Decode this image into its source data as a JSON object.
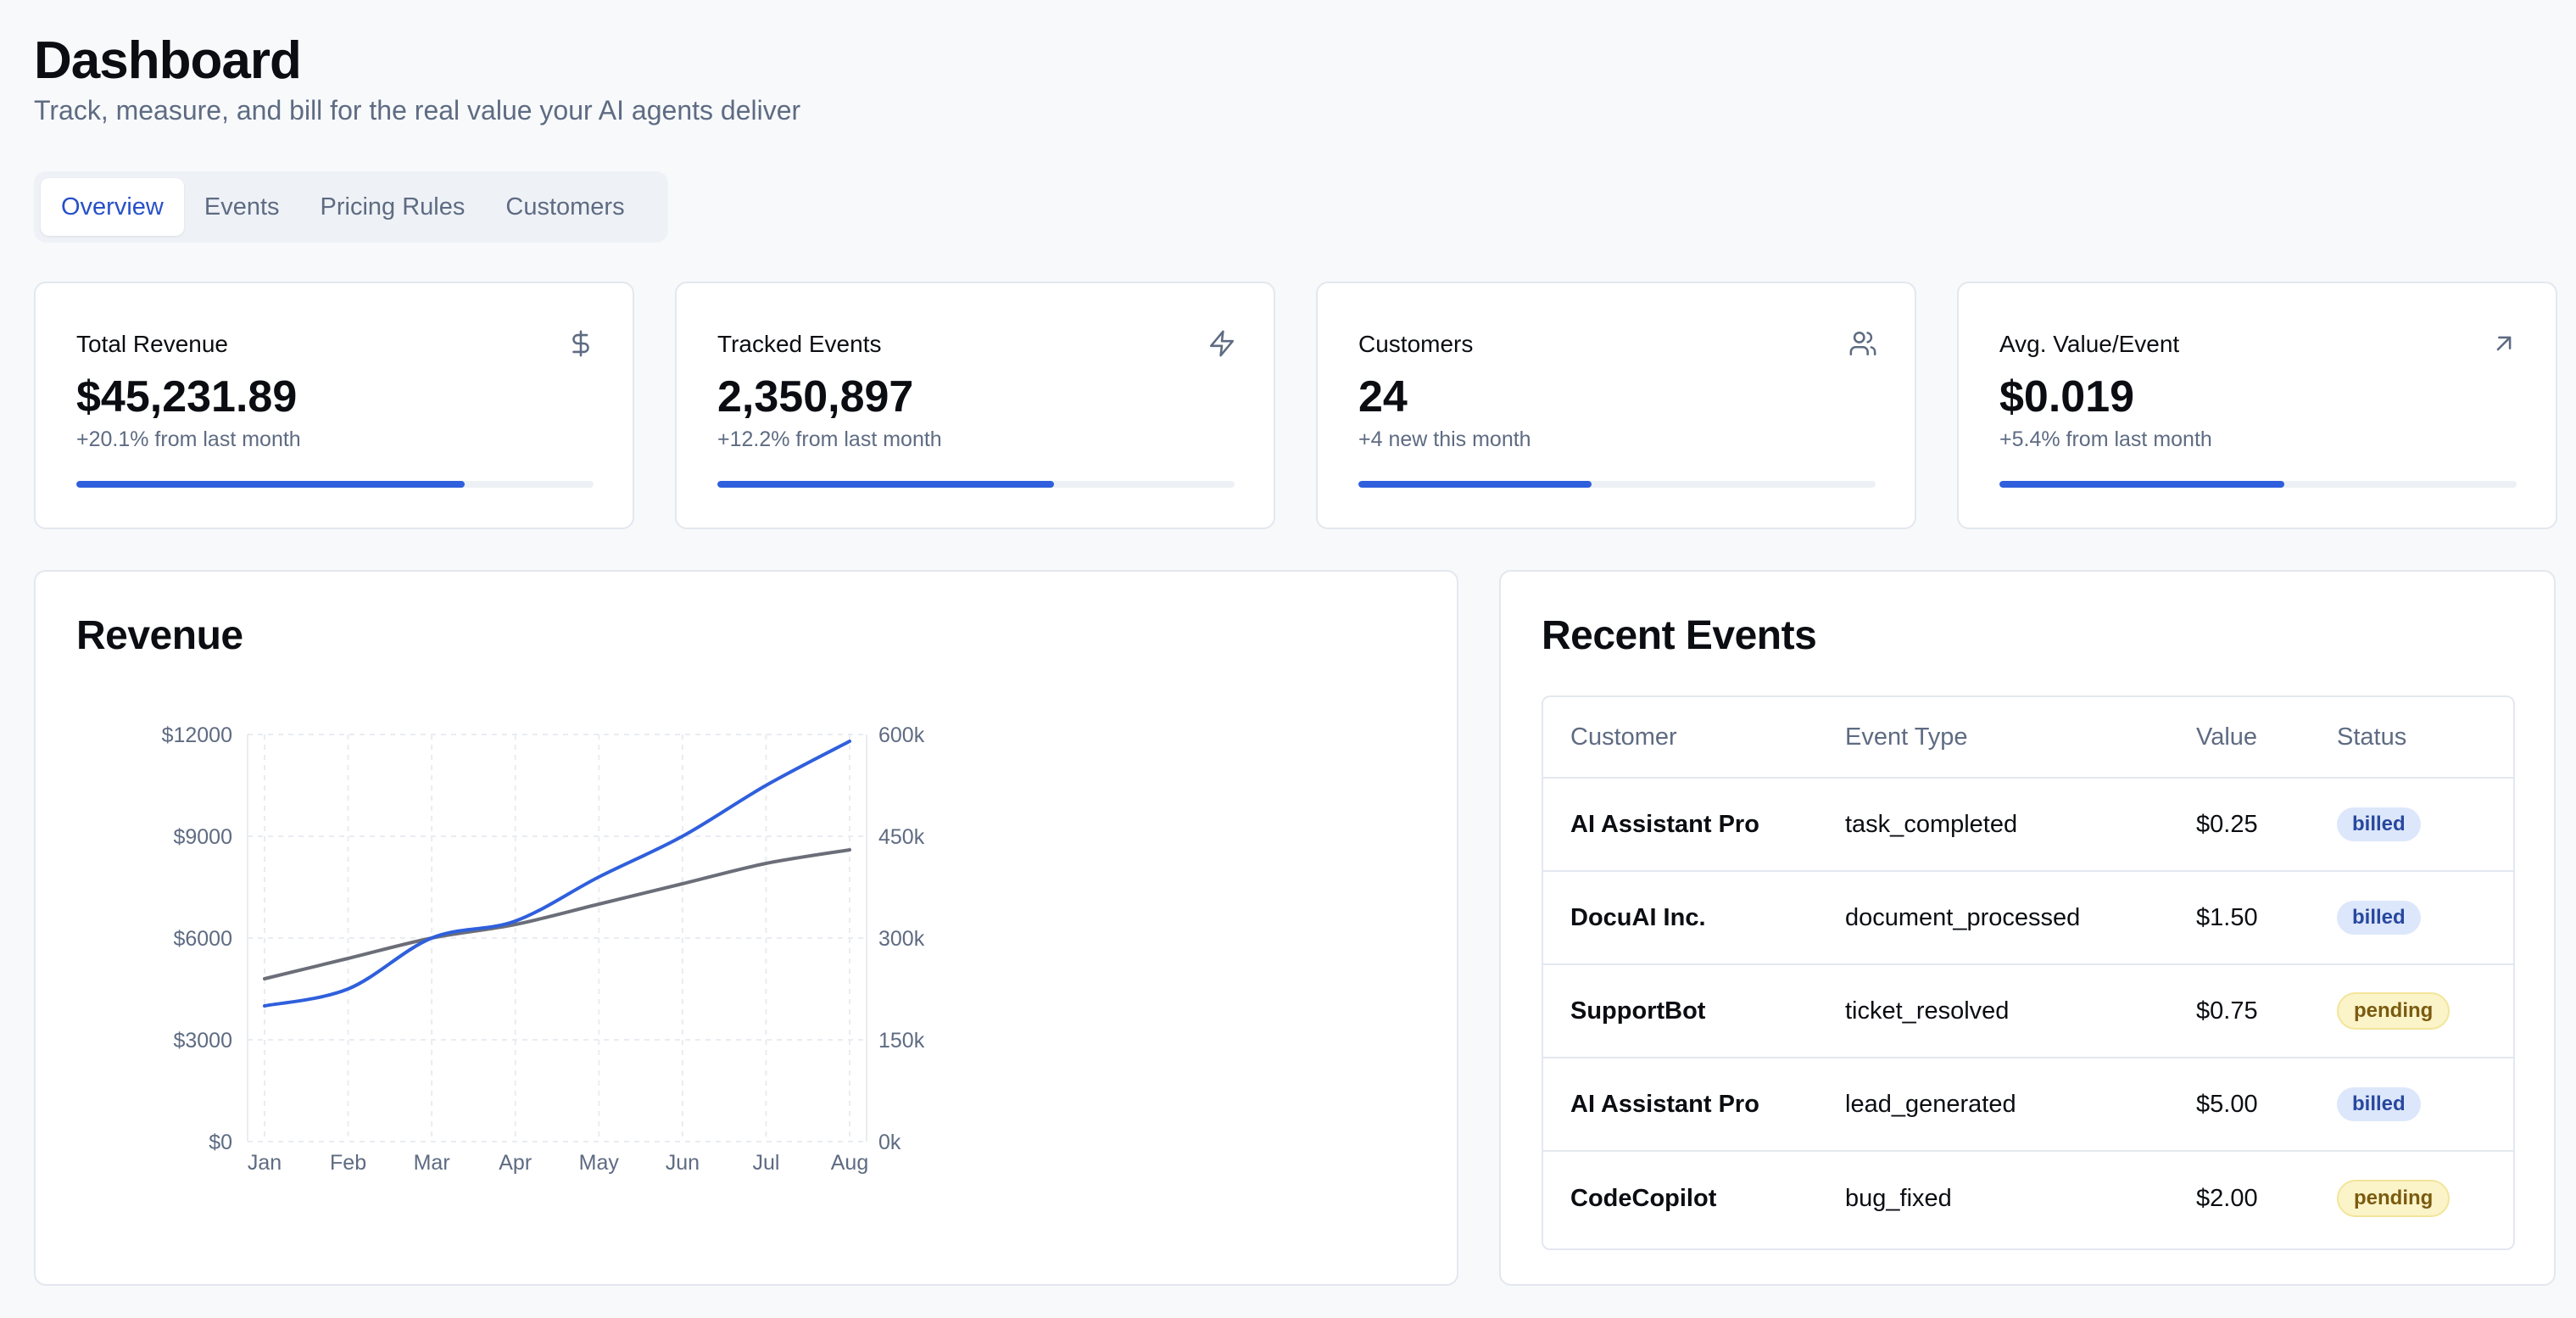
{
  "header": {
    "title": "Dashboard",
    "subtitle": "Track, measure, and bill for the real value your AI agents deliver"
  },
  "tabs": [
    {
      "label": "Overview",
      "active": true
    },
    {
      "label": "Events",
      "active": false
    },
    {
      "label": "Pricing Rules",
      "active": false
    },
    {
      "label": "Customers",
      "active": false
    }
  ],
  "stats": [
    {
      "label": "Total Revenue",
      "value": "$45,231.89",
      "delta": "+20.1% from last month",
      "icon": "dollar-icon",
      "progress": 0.75
    },
    {
      "label": "Tracked Events",
      "value": "2,350,897",
      "delta": "+12.2% from last month",
      "icon": "zap-icon",
      "progress": 0.65
    },
    {
      "label": "Customers",
      "value": "24",
      "delta": "+4 new this month",
      "icon": "users-icon",
      "progress": 0.45
    },
    {
      "label": "Avg. Value/Event",
      "value": "$0.019",
      "delta": "+5.4% from last month",
      "icon": "arrow-up-right-icon",
      "progress": 0.55
    }
  ],
  "colors": {
    "accent": "#2f5fdc",
    "revenue_line": "#2f5fdc",
    "events_line": "#6b6e78"
  },
  "revenue_panel": {
    "title": "Revenue"
  },
  "chart_data": {
    "type": "line",
    "title": "",
    "categories": [
      "Jan",
      "Feb",
      "Mar",
      "Apr",
      "May",
      "Jun",
      "Jul",
      "Aug"
    ],
    "y_left": {
      "ticks": [
        "$0",
        "$3000",
        "$6000",
        "$9000",
        "$12000"
      ],
      "range": [
        0,
        12000
      ]
    },
    "y_right": {
      "ticks": [
        "0k",
        "150k",
        "300k",
        "450k",
        "600k"
      ],
      "range": [
        0,
        600000
      ]
    },
    "grid": true,
    "series": [
      {
        "axis": "left",
        "color": "#2f5fdc",
        "values": [
          4000,
          4500,
          6000,
          6500,
          7800,
          9000,
          10500,
          11800
        ]
      },
      {
        "axis": "right",
        "color": "#6b6e78",
        "values": [
          240000,
          270000,
          300000,
          320000,
          350000,
          380000,
          410000,
          430000
        ]
      }
    ]
  },
  "events_panel": {
    "title": "Recent Events",
    "columns": [
      "Customer",
      "Event Type",
      "Value",
      "Status"
    ],
    "rows": [
      {
        "customer": "AI Assistant Pro",
        "event_type": "task_completed",
        "value": "$0.25",
        "status": "billed"
      },
      {
        "customer": "DocuAI Inc.",
        "event_type": "document_processed",
        "value": "$1.50",
        "status": "billed"
      },
      {
        "customer": "SupportBot",
        "event_type": "ticket_resolved",
        "value": "$0.75",
        "status": "pending"
      },
      {
        "customer": "AI Assistant Pro",
        "event_type": "lead_generated",
        "value": "$5.00",
        "status": "billed"
      },
      {
        "customer": "CodeCopilot",
        "event_type": "bug_fixed",
        "value": "$2.00",
        "status": "pending"
      }
    ]
  }
}
